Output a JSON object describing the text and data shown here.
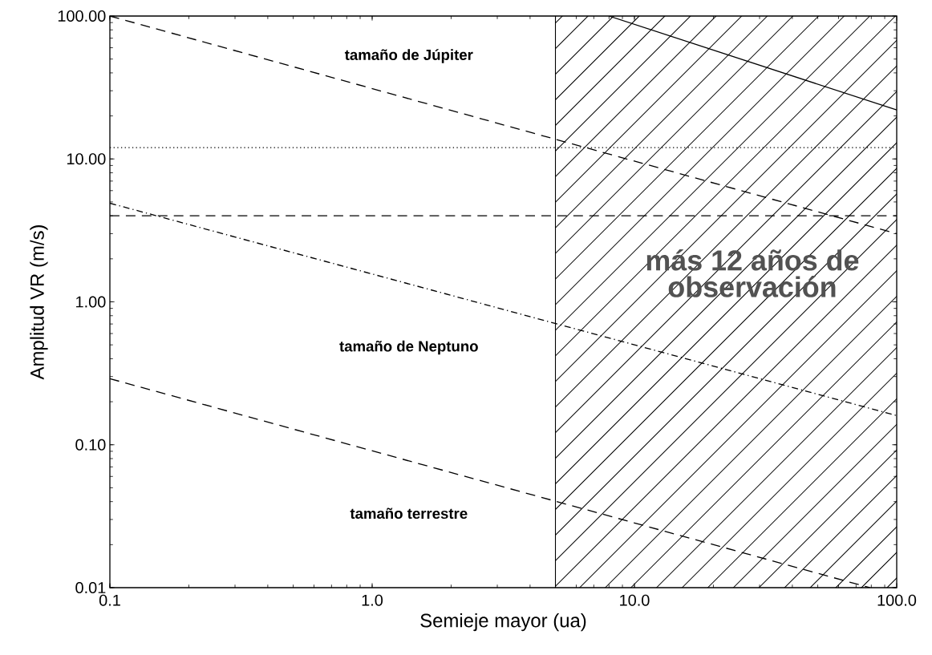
{
  "chart_data": {
    "type": "line",
    "xlabel": "Semieje mayor (ua)",
    "ylabel": "Amplitud VR  (m/s)",
    "log": "xy",
    "grid": false,
    "xlim": [
      0.1,
      100
    ],
    "ylim": [
      0.01,
      100
    ],
    "xticks": [
      0.1,
      {
        "value": 1,
        "label": "1.0"
      },
      {
        "value": 10,
        "label": "10.0"
      },
      {
        "value": 100,
        "label": "100.0"
      }
    ],
    "yticks": [
      {
        "value": 0.01,
        "label": "0.01"
      },
      {
        "value": 0.1,
        "label": "0.10"
      },
      {
        "value": 1,
        "label": "1.00"
      },
      {
        "value": 10,
        "label": "10.00"
      },
      {
        "value": 100,
        "label": "100.00"
      }
    ],
    "series": [
      {
        "color": "#000000",
        "line_style": "dashed",
        "x": [
          0.1,
          100
        ],
        "values": [
          100,
          3.0
        ]
      },
      {
        "color": "#000000",
        "line_style": "solid",
        "x": [
          8,
          100
        ],
        "values": [
          100,
          22
        ]
      },
      {
        "color": "#000000",
        "line_style": "dashdot",
        "x": [
          0.1,
          100
        ],
        "values": [
          4.9,
          0.16
        ]
      },
      {
        "color": "#000000",
        "line_style": "dashed",
        "x": [
          0.1,
          79
        ],
        "values": [
          0.29,
          0.01
        ]
      }
    ],
    "ref_lines": [
      {
        "axis": "y",
        "value": 12,
        "color": "#000000",
        "line_style": "dotted"
      },
      {
        "axis": "y",
        "value": 4,
        "color": "#000000",
        "line_style": "dashed"
      },
      {
        "axis": "x",
        "value": 5,
        "color": "#000000",
        "line_style": "solid"
      }
    ],
    "bands": [
      {
        "axis": "x",
        "from": 5,
        "to": 100,
        "label": "más 12 años de observación",
        "color": "#000000"
      }
    ],
    "annotations": [
      "tamaño de Júpiter",
      "tamaño de Neptuno",
      "tamaño terrestre"
    ]
  }
}
